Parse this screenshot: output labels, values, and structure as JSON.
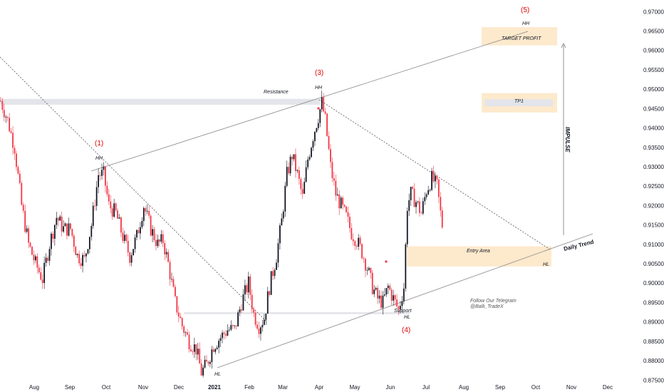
{
  "chart_data": {
    "type": "candlestick",
    "pair_price_axis": {
      "ticks": [
        "0.97000",
        "0.96500",
        "0.96000",
        "0.95500",
        "0.95000",
        "0.94500",
        "0.94000",
        "0.93500",
        "0.93000",
        "0.92500",
        "0.92000",
        "0.91500",
        "0.91000",
        "0.90500",
        "0.90000",
        "0.89500",
        "0.89000",
        "0.88500",
        "0.88000",
        "0.87500"
      ],
      "ylim": [
        0.8745,
        0.973
      ]
    },
    "time_axis": {
      "ticks": [
        "Aug",
        "Sep",
        "Oct",
        "Nov",
        "Dec",
        "2021",
        "Feb",
        "Mar",
        "Apr",
        "May",
        "Jun",
        "Jul",
        "Aug",
        "Sep",
        "Oct",
        "Nov",
        "Dec"
      ],
      "bold_tick": "2021"
    },
    "price_path": [
      [
        0,
        0.947
      ],
      [
        4,
        0.942
      ],
      [
        8,
        0.935
      ],
      [
        12,
        0.92
      ],
      [
        16,
        0.91
      ],
      [
        20,
        0.905
      ],
      [
        24,
        0.901
      ],
      [
        28,
        0.91
      ],
      [
        32,
        0.917
      ],
      [
        36,
        0.914
      ],
      [
        40,
        0.914
      ],
      [
        44,
        0.907
      ],
      [
        48,
        0.906
      ],
      [
        52,
        0.915
      ],
      [
        56,
        0.928
      ],
      [
        59,
        0.928
      ],
      [
        62,
        0.92
      ],
      [
        66,
        0.918
      ],
      [
        70,
        0.912
      ],
      [
        74,
        0.907
      ],
      [
        78,
        0.912
      ],
      [
        82,
        0.92
      ],
      [
        86,
        0.914
      ],
      [
        90,
        0.91
      ],
      [
        93,
        0.911
      ],
      [
        96,
        0.905
      ],
      [
        100,
        0.895
      ],
      [
        104,
        0.889
      ],
      [
        108,
        0.885
      ],
      [
        112,
        0.883
      ],
      [
        115,
        0.877
      ],
      [
        118,
        0.879
      ],
      [
        122,
        0.884
      ],
      [
        126,
        0.886
      ],
      [
        130,
        0.888
      ],
      [
        134,
        0.888
      ],
      [
        138,
        0.895
      ],
      [
        142,
        0.9
      ],
      [
        145,
        0.892
      ],
      [
        148,
        0.889
      ],
      [
        151,
        0.891
      ],
      [
        154,
        0.899
      ],
      [
        158,
        0.907
      ],
      [
        161,
        0.916
      ],
      [
        164,
        0.928
      ],
      [
        167,
        0.933
      ],
      [
        170,
        0.928
      ],
      [
        173,
        0.922
      ],
      [
        176,
        0.932
      ],
      [
        179,
        0.938
      ],
      [
        182,
        0.943
      ],
      [
        184,
        0.9465
      ],
      [
        186,
        0.942
      ],
      [
        189,
        0.93
      ],
      [
        192,
        0.923
      ],
      [
        195,
        0.92
      ],
      [
        198,
        0.917
      ],
      [
        201,
        0.913
      ],
      [
        204,
        0.911
      ],
      [
        207,
        0.908
      ],
      [
        210,
        0.904
      ],
      [
        213,
        0.899
      ],
      [
        216,
        0.896
      ],
      [
        219,
        0.895
      ],
      [
        222,
        0.899
      ],
      [
        225,
        0.896
      ],
      [
        228,
        0.893
      ],
      [
        231,
        0.899
      ],
      [
        233,
        0.92
      ],
      [
        235,
        0.923
      ],
      [
        238,
        0.921
      ],
      [
        241,
        0.918
      ],
      [
        244,
        0.924
      ],
      [
        247,
        0.927
      ],
      [
        250,
        0.925
      ],
      [
        252,
        0.918
      ],
      [
        253,
        0.915
      ]
    ],
    "series": [
      {
        "name": "Resistance",
        "values": [
          0.946,
          0.9475
        ]
      },
      {
        "name": "Support",
        "values": [
          0.892,
          0.8925
        ]
      }
    ],
    "annotations": {
      "resistance_label": "Resistance",
      "support_label": "Support",
      "hh1": "HH",
      "hh3": "HH",
      "hh5": "HH",
      "hl_bottom": "HL",
      "hl4": "HL",
      "hl_right": "HL",
      "wave1": "(1)",
      "wave3": "(3)",
      "wave4": "(4)",
      "wave5": "(5)",
      "target_profit": "TARGET PROFIT",
      "tp1": "TP1",
      "entry_area": "Entry Area",
      "impulse": "IMPULSE",
      "daily_trend": "Daily Trend",
      "telegram_line1": "Follow Our Telegram",
      "telegram_line2": "@Balli_TradeX"
    },
    "zones": {
      "target_profit": [
        0.9613,
        0.966
      ],
      "tp1": [
        0.944,
        0.949
      ],
      "entry_area": [
        0.9043,
        0.9095
      ],
      "resistance": [
        0.946,
        0.9475
      ],
      "support": [
        0.892,
        0.8925
      ]
    },
    "colors": {
      "up": "#131722",
      "down": "#f23645",
      "zone": "#fde9cc",
      "band": "#e3e5ea",
      "wave_label": "#e00000"
    }
  }
}
